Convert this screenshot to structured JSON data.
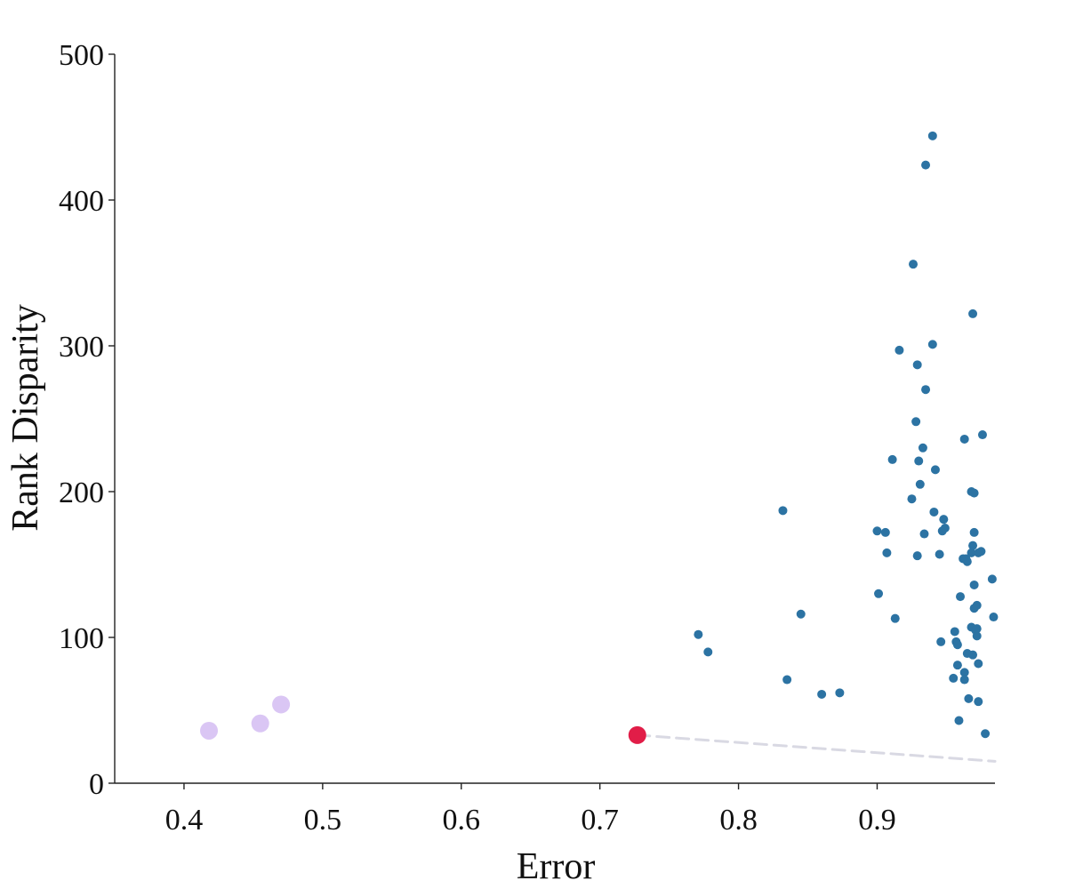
{
  "chart_data": {
    "type": "scatter",
    "xlabel": "Error",
    "ylabel": "Rank Disparity",
    "xlim": [
      0.35,
      0.985
    ],
    "ylim": [
      0,
      500
    ],
    "xticks": [
      0.4,
      0.5,
      0.6,
      0.7,
      0.8,
      0.9
    ],
    "xtick_labels": [
      "0.4",
      "0.5",
      "0.6",
      "0.7",
      "0.8",
      "0.9"
    ],
    "yticks": [
      0,
      100,
      200,
      300,
      400,
      500
    ],
    "ytick_labels": [
      "0",
      "100",
      "200",
      "300",
      "400",
      "500"
    ],
    "grid": false,
    "spines": "left-bottom",
    "colors": {
      "main": "#2c73a3",
      "highlight": "#e11d48",
      "pareto": "#d8c3f3",
      "trend": "#d9d9e3",
      "axis": "#222222"
    },
    "trend_line": [
      {
        "x": 0.727,
        "y": 33
      },
      {
        "x": 0.985,
        "y": 15
      }
    ],
    "series": [
      {
        "role": "pareto",
        "points": [
          {
            "x": 0.418,
            "y": 36
          },
          {
            "x": 0.455,
            "y": 41
          },
          {
            "x": 0.47,
            "y": 54
          }
        ]
      },
      {
        "role": "highlight",
        "points": [
          {
            "x": 0.727,
            "y": 33
          }
        ]
      },
      {
        "role": "main",
        "points": [
          {
            "x": 0.771,
            "y": 102
          },
          {
            "x": 0.778,
            "y": 90
          },
          {
            "x": 0.832,
            "y": 187
          },
          {
            "x": 0.835,
            "y": 71
          },
          {
            "x": 0.845,
            "y": 116
          },
          {
            "x": 0.86,
            "y": 61
          },
          {
            "x": 0.873,
            "y": 62
          },
          {
            "x": 0.9,
            "y": 173
          },
          {
            "x": 0.901,
            "y": 130
          },
          {
            "x": 0.906,
            "y": 172
          },
          {
            "x": 0.907,
            "y": 158
          },
          {
            "x": 0.911,
            "y": 222
          },
          {
            "x": 0.913,
            "y": 113
          },
          {
            "x": 0.916,
            "y": 297
          },
          {
            "x": 0.925,
            "y": 195
          },
          {
            "x": 0.926,
            "y": 356
          },
          {
            "x": 0.928,
            "y": 248
          },
          {
            "x": 0.929,
            "y": 287
          },
          {
            "x": 0.929,
            "y": 156
          },
          {
            "x": 0.93,
            "y": 221
          },
          {
            "x": 0.931,
            "y": 205
          },
          {
            "x": 0.933,
            "y": 230
          },
          {
            "x": 0.934,
            "y": 171
          },
          {
            "x": 0.935,
            "y": 424
          },
          {
            "x": 0.935,
            "y": 270
          },
          {
            "x": 0.94,
            "y": 444
          },
          {
            "x": 0.94,
            "y": 301
          },
          {
            "x": 0.941,
            "y": 186
          },
          {
            "x": 0.942,
            "y": 215
          },
          {
            "x": 0.945,
            "y": 157
          },
          {
            "x": 0.946,
            "y": 97
          },
          {
            "x": 0.947,
            "y": 173
          },
          {
            "x": 0.948,
            "y": 181
          },
          {
            "x": 0.949,
            "y": 175
          },
          {
            "x": 0.955,
            "y": 72
          },
          {
            "x": 0.956,
            "y": 104
          },
          {
            "x": 0.957,
            "y": 97
          },
          {
            "x": 0.958,
            "y": 95
          },
          {
            "x": 0.958,
            "y": 81
          },
          {
            "x": 0.959,
            "y": 43
          },
          {
            "x": 0.96,
            "y": 128
          },
          {
            "x": 0.962,
            "y": 154
          },
          {
            "x": 0.963,
            "y": 236
          },
          {
            "x": 0.963,
            "y": 76
          },
          {
            "x": 0.963,
            "y": 71
          },
          {
            "x": 0.964,
            "y": 154
          },
          {
            "x": 0.965,
            "y": 152
          },
          {
            "x": 0.965,
            "y": 89
          },
          {
            "x": 0.966,
            "y": 58
          },
          {
            "x": 0.968,
            "y": 200
          },
          {
            "x": 0.968,
            "y": 107
          },
          {
            "x": 0.968,
            "y": 158
          },
          {
            "x": 0.969,
            "y": 322
          },
          {
            "x": 0.969,
            "y": 163
          },
          {
            "x": 0.969,
            "y": 88
          },
          {
            "x": 0.97,
            "y": 172
          },
          {
            "x": 0.97,
            "y": 199
          },
          {
            "x": 0.97,
            "y": 136
          },
          {
            "x": 0.97,
            "y": 120
          },
          {
            "x": 0.971,
            "y": 105
          },
          {
            "x": 0.972,
            "y": 122
          },
          {
            "x": 0.972,
            "y": 101
          },
          {
            "x": 0.972,
            "y": 106
          },
          {
            "x": 0.973,
            "y": 158
          },
          {
            "x": 0.973,
            "y": 82
          },
          {
            "x": 0.973,
            "y": 56
          },
          {
            "x": 0.975,
            "y": 159
          },
          {
            "x": 0.976,
            "y": 239
          },
          {
            "x": 0.978,
            "y": 34
          },
          {
            "x": 0.983,
            "y": 140
          },
          {
            "x": 0.984,
            "y": 114
          }
        ]
      }
    ]
  }
}
